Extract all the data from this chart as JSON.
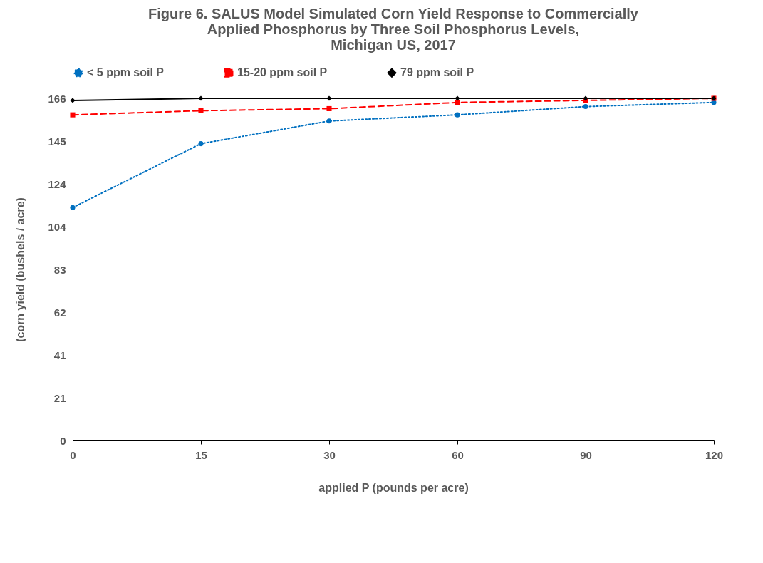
{
  "chart_data": {
    "type": "line",
    "title": "Figure 6.  SALUS Model Simulated Corn Yield Response to Commercially\nApplied Phosphorus by Three Soil Phosphorus Levels,\nMichigan US, 2017",
    "xlabel": "applied P (pounds per acre)",
    "ylabel": "(corn yield (bushels / acre)",
    "categories": [
      "0",
      "15",
      "30",
      "60",
      "90",
      "120"
    ],
    "series": [
      {
        "name": "< 5 ppm soil P",
        "color": "#0070c0",
        "marker": "circle",
        "line_style": "dotted",
        "values": [
          113,
          144,
          155,
          158,
          162,
          164
        ]
      },
      {
        "name": "15-20 ppm soil P",
        "color": "#ff0000",
        "marker": "square",
        "line_style": "dashed",
        "values": [
          158,
          160,
          161,
          164,
          165,
          166
        ]
      },
      {
        "name": "79 ppm soil P",
        "color": "#000000",
        "marker": "diamond",
        "line_style": "solid",
        "values": [
          165,
          166,
          166,
          166,
          166,
          166
        ]
      }
    ],
    "ylim": [
      0,
      166
    ],
    "yticks": [
      0,
      {
        "value": 20.75,
        "label": "21"
      },
      {
        "value": 41.5,
        "label": "41"
      },
      {
        "value": 62.25,
        "label": "62"
      },
      83,
      {
        "value": 103.75,
        "label": "104"
      },
      {
        "value": 124.5,
        "label": "124"
      },
      {
        "value": 145.25,
        "label": "145"
      },
      166
    ],
    "grid": false,
    "legend": "top"
  }
}
